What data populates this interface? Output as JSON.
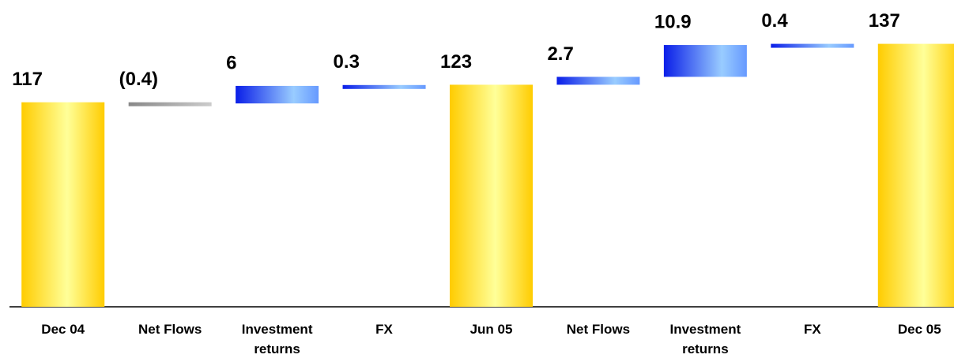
{
  "chart_data": {
    "type": "waterfall",
    "categories": [
      "Dec 04",
      "Net Flows",
      "Investment returns",
      "FX",
      "Jun 05",
      "Net Flows",
      "Investment returns",
      "FX",
      "Dec 05"
    ],
    "values": [
      117,
      -0.4,
      6,
      0.3,
      123,
      2.7,
      10.9,
      0.4,
      137
    ],
    "value_labels": [
      "117",
      "(0.4)",
      "6",
      "0.3",
      "123",
      "2.7",
      "10.9",
      "0.4",
      "137"
    ],
    "is_total": [
      true,
      false,
      false,
      false,
      true,
      false,
      false,
      false,
      true
    ],
    "colors": {
      "total": "#ffcc00",
      "increase": "#0a1ee8",
      "decrease": "#888888"
    },
    "ylim": [
      47,
      152
    ]
  }
}
